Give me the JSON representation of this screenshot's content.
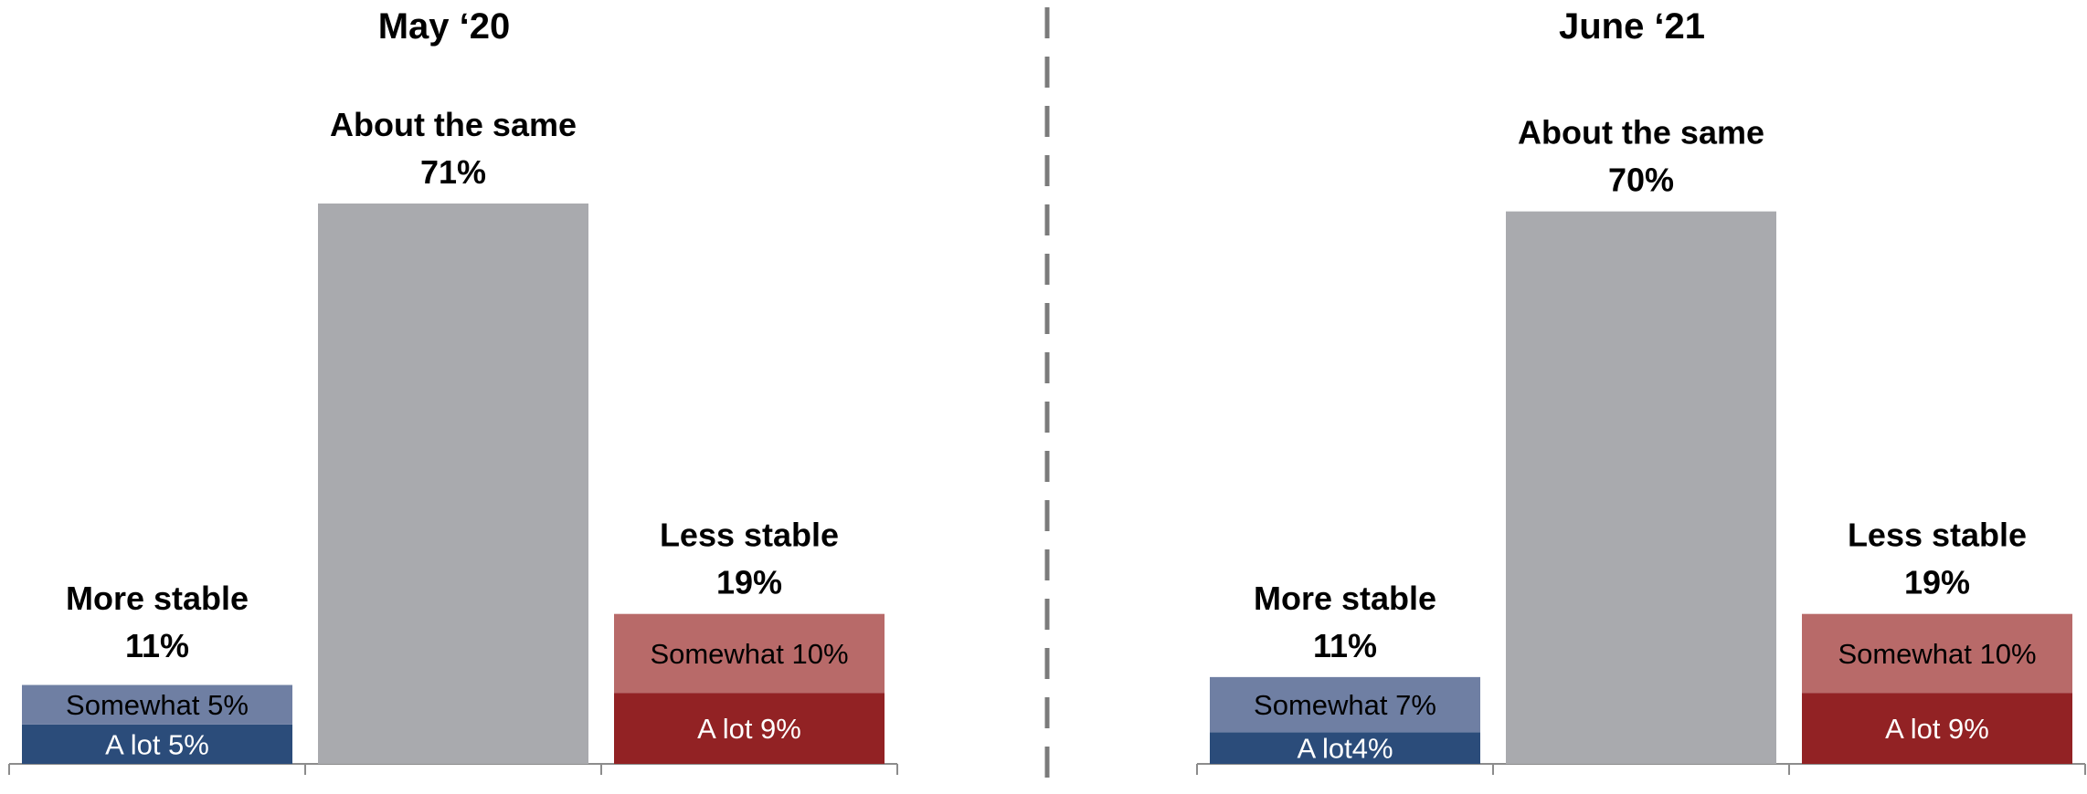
{
  "chart_data": [
    {
      "type": "bar",
      "stacked": true,
      "title": "May ‘20",
      "ylim": [
        0,
        71
      ],
      "categories": [
        {
          "label": "More stable",
          "total_label": "11%",
          "total": 11,
          "segments": [
            {
              "name": "A lot",
              "label": "A lot 5%",
              "value": 5,
              "color": "#2b4c7a",
              "text_color": "#ffffff"
            },
            {
              "name": "Somewhat",
              "label": "Somewhat 5%",
              "value": 5,
              "color": "#6f7fa3",
              "text_color": "#000000"
            }
          ]
        },
        {
          "label": "About the same",
          "total_label": "71%",
          "total": 71,
          "segments": [
            {
              "name": "About the same",
              "label": "",
              "value": 71,
              "color": "#a9aaae",
              "text_color": "#000000"
            }
          ]
        },
        {
          "label": "Less stable",
          "total_label": "19%",
          "total": 19,
          "segments": [
            {
              "name": "A lot",
              "label": "A lot 9%",
              "value": 9,
              "color": "#922224",
              "text_color": "#ffffff"
            },
            {
              "name": "Somewhat",
              "label": "Somewhat 10%",
              "value": 10,
              "color": "#b86a69",
              "text_color": "#000000"
            }
          ]
        }
      ]
    },
    {
      "type": "bar",
      "stacked": true,
      "title": "June ‘21",
      "ylim": [
        0,
        71
      ],
      "categories": [
        {
          "label": "More stable",
          "total_label": "11%",
          "total": 11,
          "segments": [
            {
              "name": "A lot",
              "label": "A lot4%",
              "value": 4,
              "color": "#2b4c7a",
              "text_color": "#ffffff"
            },
            {
              "name": "Somewhat",
              "label": "Somewhat 7%",
              "value": 7,
              "color": "#6f7fa3",
              "text_color": "#000000"
            }
          ]
        },
        {
          "label": "About the same",
          "total_label": "70%",
          "total": 70,
          "segments": [
            {
              "name": "About the same",
              "label": "",
              "value": 70,
              "color": "#a9aaae",
              "text_color": "#000000"
            }
          ]
        },
        {
          "label": "Less stable",
          "total_label": "19%",
          "total": 19,
          "segments": [
            {
              "name": "A lot",
              "label": "A lot 9%",
              "value": 9,
              "color": "#922224",
              "text_color": "#ffffff"
            },
            {
              "name": "Somewhat",
              "label": "Somewhat 10%",
              "value": 10,
              "color": "#b86a69",
              "text_color": "#000000"
            }
          ]
        }
      ]
    }
  ]
}
